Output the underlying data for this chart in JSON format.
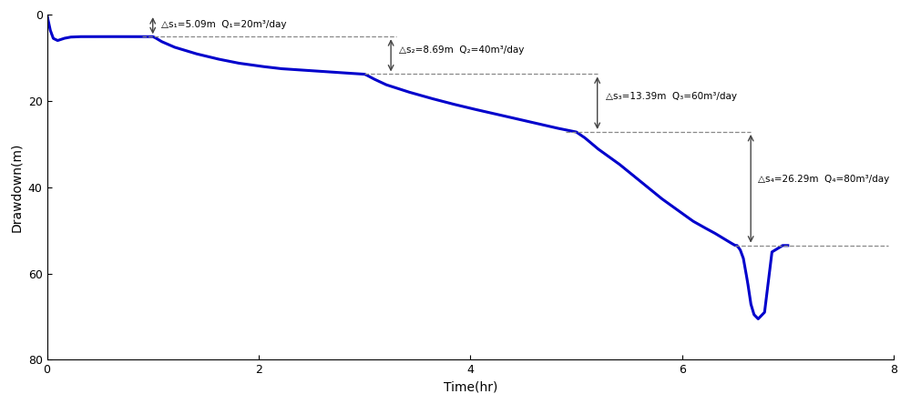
{
  "title": "",
  "xlabel": "Time(hr)",
  "ylabel": "Drawdown(m)",
  "xlim": [
    0,
    8
  ],
  "ylim": [
    80,
    0
  ],
  "yticks": [
    0,
    20,
    40,
    60,
    80
  ],
  "xticks": [
    0,
    2,
    4,
    6,
    8
  ],
  "line_color": "#0000CC",
  "line_width": 2.2,
  "ann1_label": "△s₁=5.09m  Q₁=20m³/day",
  "ann2_label": "△s₂=8.69m  Q₂=40m³/day",
  "ann3_label": "△s₃=13.39m  Q₃=60m³/day",
  "ann4_label": "△s₄=26.29m  Q₄=80m³/day",
  "dashed_lines": [
    {
      "x_start": 0.9,
      "x_end": 3.3,
      "y": 5.09
    },
    {
      "x_start": 3.0,
      "x_end": 5.2,
      "y": 13.78
    },
    {
      "x_start": 4.9,
      "x_end": 6.65,
      "y": 27.17
    },
    {
      "x_start": 6.5,
      "x_end": 7.95,
      "y": 53.46
    }
  ],
  "t_points": [
    0.0,
    0.03,
    0.06,
    0.1,
    0.16,
    0.22,
    0.3,
    0.4,
    0.55,
    0.7,
    0.85,
    1.0,
    1.02,
    1.08,
    1.2,
    1.4,
    1.6,
    1.8,
    2.0,
    2.2,
    2.5,
    2.8,
    3.0,
    3.02,
    3.08,
    3.2,
    3.4,
    3.6,
    3.8,
    4.0,
    4.2,
    4.5,
    4.8,
    5.0,
    5.02,
    5.08,
    5.2,
    5.4,
    5.6,
    5.8,
    6.0,
    6.1,
    6.2,
    6.3,
    6.4,
    6.5,
    6.52,
    6.55,
    6.58,
    6.62,
    6.65,
    6.68,
    6.72,
    6.78,
    6.85,
    6.95,
    7.0
  ],
  "s_points": [
    0.0,
    3.5,
    5.5,
    6.0,
    5.5,
    5.2,
    5.1,
    5.09,
    5.09,
    5.09,
    5.09,
    5.09,
    5.3,
    6.2,
    7.5,
    9.0,
    10.2,
    11.2,
    11.9,
    12.5,
    13.0,
    13.5,
    13.78,
    14.0,
    14.8,
    16.2,
    17.8,
    19.2,
    20.5,
    21.7,
    22.8,
    24.5,
    26.2,
    27.17,
    27.5,
    28.5,
    31.0,
    34.5,
    38.5,
    42.5,
    46.0,
    47.8,
    49.2,
    50.5,
    52.0,
    53.46,
    53.5,
    54.5,
    56.5,
    62.0,
    67.0,
    69.5,
    70.5,
    69.0,
    55.0,
    53.5,
    53.5
  ]
}
